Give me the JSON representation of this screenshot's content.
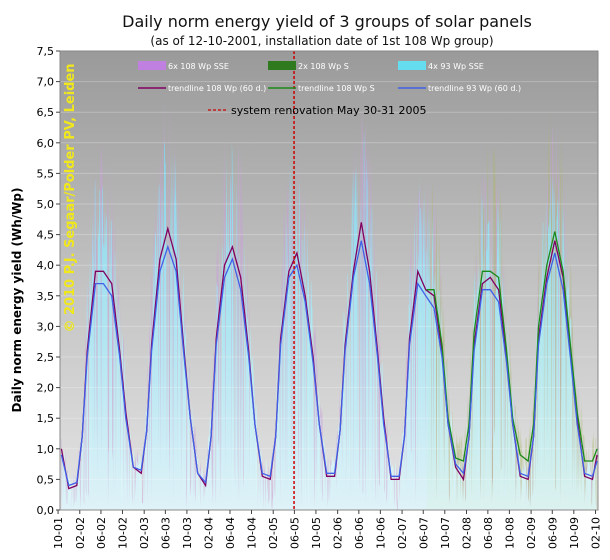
{
  "chart_data": {
    "type": "area",
    "title": "Daily norm energy yield of 3 groups of solar panels",
    "subtitle": "(as of 12-10-2001, installation date of 1st 108 Wp group)",
    "ylabel": "Daily norm energy yield (Wh/Wp)",
    "xlabel": "",
    "watermark": "© 2010 P.J. Segaar/Polder PV, Leiden",
    "ylim": [
      0,
      7.5
    ],
    "yticks": [
      "0,0",
      "0,5",
      "1,0",
      "1,5",
      "2,0",
      "2,5",
      "3,0",
      "3,5",
      "4,0",
      "4,5",
      "5,0",
      "5,5",
      "6,0",
      "6,5",
      "7,0",
      "7,5"
    ],
    "xticks": [
      "10-01",
      "02-02",
      "06-02",
      "10-02",
      "02-03",
      "06-03",
      "10-03",
      "02-04",
      "06-04",
      "10-04",
      "02-05",
      "06-05",
      "10-05",
      "02-06",
      "06-06",
      "10-06",
      "02-07",
      "06-07",
      "10-07",
      "02-08",
      "06-08",
      "10-08",
      "02-09",
      "06-09",
      "10-09",
      "02-10"
    ],
    "xlim": [
      "2001-10-12",
      "2010-02-15"
    ],
    "grid": true,
    "legend_position": "top",
    "legend": [
      {
        "label": "6x 108 Wp SSE",
        "kind": "area",
        "color": "#c080e0"
      },
      {
        "label": "2x 108 Wp S",
        "kind": "area",
        "color": "#2f7a1f"
      },
      {
        "label": "4x 93 Wp SSE",
        "kind": "area",
        "color": "#66ddee"
      },
      {
        "label": "trendline 108 Wp (60 d.)",
        "kind": "line",
        "color": "#800060"
      },
      {
        "label": "trendline 108 Wp S",
        "kind": "line",
        "color": "#1a8a1a"
      },
      {
        "label": "trendline 93 Wp (60 d.)",
        "kind": "line",
        "color": "#4060e8"
      }
    ],
    "annotation": {
      "label": "system renovation May 30-31 2005",
      "date": "2005-05-30",
      "color": "#cc0000"
    },
    "series": [
      {
        "name": "trendline 108 Wp (60 d.)",
        "color": "#800060",
        "x": [
          "2001-10-20",
          "2001-12-01",
          "2002-01-15",
          "2002-02-15",
          "2002-03-15",
          "2002-05-01",
          "2002-06-15",
          "2002-08-01",
          "2002-09-15",
          "2002-10-20",
          "2002-12-01",
          "2003-01-15",
          "2003-02-15",
          "2003-03-15",
          "2003-05-01",
          "2003-06-15",
          "2003-08-01",
          "2003-09-15",
          "2003-10-20",
          "2003-12-01",
          "2004-01-15",
          "2004-02-15",
          "2004-03-15",
          "2004-05-01",
          "2004-06-15",
          "2004-08-01",
          "2004-09-15",
          "2004-10-20",
          "2004-12-01",
          "2005-01-15",
          "2005-02-15",
          "2005-03-15",
          "2005-05-01",
          "2005-06-15",
          "2005-08-01",
          "2005-09-15",
          "2005-10-20",
          "2005-12-01",
          "2006-01-15",
          "2006-02-15",
          "2006-03-15",
          "2006-05-01",
          "2006-06-15",
          "2006-08-01",
          "2006-09-15",
          "2006-10-20",
          "2006-12-01",
          "2007-01-15",
          "2007-02-15",
          "2007-03-15",
          "2007-05-01",
          "2007-06-15",
          "2007-08-01",
          "2007-09-15",
          "2007-10-20",
          "2007-12-01",
          "2008-01-15",
          "2008-02-15",
          "2008-03-15",
          "2008-05-01",
          "2008-06-15",
          "2008-08-01",
          "2008-09-15",
          "2008-10-20",
          "2008-12-01",
          "2009-01-15",
          "2009-02-15",
          "2009-03-15",
          "2009-05-01",
          "2009-06-15",
          "2009-08-01",
          "2009-09-15",
          "2009-10-20",
          "2009-12-01",
          "2010-01-15",
          "2010-02-10"
        ],
        "values": [
          1.0,
          0.35,
          0.4,
          1.2,
          2.6,
          3.9,
          3.9,
          3.7,
          2.6,
          1.6,
          0.7,
          0.6,
          1.3,
          2.7,
          4.1,
          4.6,
          4.1,
          2.6,
          1.5,
          0.6,
          0.4,
          1.2,
          2.8,
          4.0,
          4.3,
          3.8,
          2.6,
          1.4,
          0.55,
          0.5,
          1.2,
          2.8,
          3.9,
          4.2,
          3.5,
          2.5,
          1.4,
          0.55,
          0.55,
          1.3,
          2.7,
          3.9,
          4.7,
          3.9,
          2.6,
          1.5,
          0.5,
          0.5,
          1.2,
          2.8,
          3.9,
          3.6,
          3.5,
          2.6,
          1.4,
          0.7,
          0.5,
          1.2,
          2.7,
          3.7,
          3.8,
          3.6,
          2.5,
          1.4,
          0.55,
          0.5,
          1.2,
          2.8,
          3.8,
          4.4,
          3.8,
          2.5,
          1.5,
          0.55,
          0.5,
          0.9
        ]
      },
      {
        "name": "trendline 108 Wp S",
        "color": "#1a8a1a",
        "x": [
          "2007-06-20",
          "2007-08-01",
          "2007-09-15",
          "2007-10-20",
          "2007-12-01",
          "2008-01-15",
          "2008-02-15",
          "2008-03-15",
          "2008-05-01",
          "2008-06-15",
          "2008-08-01",
          "2008-09-15",
          "2008-10-20",
          "2008-12-01",
          "2009-01-15",
          "2009-02-15",
          "2009-03-15",
          "2009-05-01",
          "2009-06-15",
          "2009-08-01",
          "2009-09-15",
          "2009-10-20",
          "2009-12-01",
          "2010-01-15",
          "2010-02-10"
        ],
        "values": [
          3.6,
          3.6,
          2.7,
          1.5,
          0.85,
          0.8,
          1.4,
          2.9,
          3.9,
          3.9,
          3.8,
          2.6,
          1.5,
          0.9,
          0.8,
          1.4,
          3.0,
          4.0,
          4.55,
          3.9,
          2.6,
          1.6,
          0.8,
          0.8,
          1.0
        ]
      },
      {
        "name": "trendline 93 Wp (60 d.)",
        "color": "#4060e8",
        "x": [
          "2001-10-20",
          "2001-12-01",
          "2002-01-15",
          "2002-02-15",
          "2002-03-15",
          "2002-05-01",
          "2002-06-15",
          "2002-08-01",
          "2002-09-15",
          "2002-10-20",
          "2002-12-01",
          "2003-01-15",
          "2003-02-15",
          "2003-03-15",
          "2003-05-01",
          "2003-06-15",
          "2003-08-01",
          "2003-09-15",
          "2003-10-20",
          "2003-12-01",
          "2004-01-15",
          "2004-02-15",
          "2004-03-15",
          "2004-05-01",
          "2004-06-15",
          "2004-08-01",
          "2004-09-15",
          "2004-10-20",
          "2004-12-01",
          "2005-01-15",
          "2005-02-15",
          "2005-03-15",
          "2005-05-01",
          "2005-06-15",
          "2005-08-01",
          "2005-09-15",
          "2005-10-20",
          "2005-12-01",
          "2006-01-15",
          "2006-02-15",
          "2006-03-15",
          "2006-05-01",
          "2006-06-15",
          "2006-08-01",
          "2006-09-15",
          "2006-10-20",
          "2006-12-01",
          "2007-01-15",
          "2007-02-15",
          "2007-03-15",
          "2007-05-01",
          "2007-06-15",
          "2007-08-01",
          "2007-09-15",
          "2007-10-20",
          "2007-12-01",
          "2008-01-15",
          "2008-02-15",
          "2008-03-15",
          "2008-05-01",
          "2008-06-15",
          "2008-08-01",
          "2008-09-15",
          "2008-10-20",
          "2008-12-01",
          "2009-01-15",
          "2009-02-15",
          "2009-03-15",
          "2009-05-01",
          "2009-06-15",
          "2009-08-01",
          "2009-09-15",
          "2009-10-20",
          "2009-12-01",
          "2010-01-15",
          "2010-02-10"
        ],
        "values": [
          0.9,
          0.4,
          0.45,
          1.2,
          2.5,
          3.7,
          3.7,
          3.5,
          2.5,
          1.5,
          0.7,
          0.65,
          1.3,
          2.6,
          3.9,
          4.3,
          3.9,
          2.5,
          1.5,
          0.6,
          0.45,
          1.2,
          2.7,
          3.8,
          4.1,
          3.6,
          2.5,
          1.4,
          0.6,
          0.55,
          1.2,
          2.7,
          3.8,
          4.0,
          3.4,
          2.4,
          1.4,
          0.6,
          0.6,
          1.3,
          2.6,
          3.8,
          4.4,
          3.7,
          2.5,
          1.4,
          0.55,
          0.55,
          1.2,
          2.7,
          3.7,
          3.5,
          3.3,
          2.5,
          1.4,
          0.75,
          0.6,
          1.2,
          2.6,
          3.6,
          3.6,
          3.4,
          2.4,
          1.4,
          0.6,
          0.55,
          1.2,
          2.7,
          3.7,
          4.2,
          3.6,
          2.4,
          1.4,
          0.6,
          0.55,
          0.8
        ]
      }
    ]
  }
}
